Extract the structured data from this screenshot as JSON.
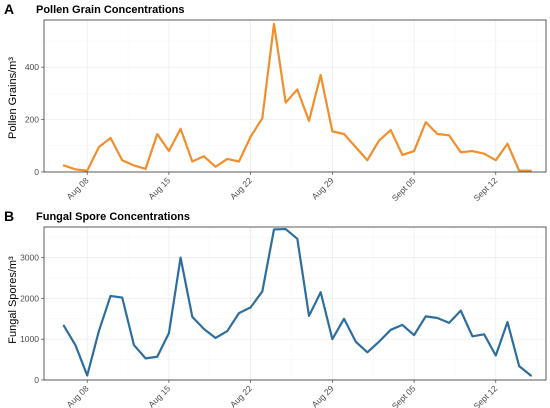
{
  "chart_data": [
    {
      "type": "line",
      "panel_label": "A",
      "title": "Pollen Grain Concentrations",
      "xlabel": "",
      "ylabel": "Pollen Grains/m³",
      "ylim": [
        0,
        580
      ],
      "yticks": [
        0,
        200,
        400
      ],
      "xtick_labels": [
        "Aug 08",
        "Aug 15",
        "Aug 22",
        "Aug 29",
        "Sept 05",
        "Sept 12"
      ],
      "xtick_days": [
        8,
        15,
        22,
        29,
        36,
        43
      ],
      "color": "#F28E2B",
      "grid": true,
      "legend": "none",
      "x_days": [
        6,
        7,
        8,
        9,
        10,
        11,
        12,
        13,
        14,
        15,
        16,
        17,
        18,
        19,
        20,
        21,
        22,
        23,
        24,
        25,
        26,
        27,
        28,
        29,
        30,
        31,
        32,
        33,
        34,
        35,
        36,
        37,
        38,
        39,
        40,
        41,
        42,
        43,
        44,
        45,
        46
      ],
      "values": [
        25,
        10,
        5,
        95,
        130,
        45,
        25,
        12,
        145,
        80,
        165,
        40,
        60,
        20,
        50,
        40,
        135,
        205,
        565,
        265,
        315,
        195,
        370,
        155,
        145,
        95,
        45,
        120,
        160,
        65,
        80,
        190,
        145,
        140,
        75,
        80,
        70,
        45,
        108,
        5,
        5
      ]
    },
    {
      "type": "line",
      "panel_label": "B",
      "title": "Fungal Spore Concentrations",
      "xlabel": "",
      "ylabel": "Fungal Spores/m³",
      "ylim": [
        0,
        3750
      ],
      "yticks": [
        0,
        1000,
        2000,
        3000
      ],
      "xtick_labels": [
        "Aug 08",
        "Aug 15",
        "Aug 22",
        "Aug 29",
        "Sept 05",
        "Sept 12"
      ],
      "xtick_days": [
        8,
        15,
        22,
        29,
        36,
        43
      ],
      "color": "#2E6E9E",
      "grid": true,
      "legend": "none",
      "x_days": [
        6,
        7,
        8,
        9,
        10,
        11,
        12,
        13,
        14,
        15,
        16,
        17,
        18,
        19,
        20,
        21,
        22,
        23,
        24,
        25,
        26,
        27,
        28,
        29,
        30,
        31,
        32,
        33,
        34,
        35,
        36,
        37,
        38,
        39,
        40,
        41,
        42,
        43,
        44,
        45,
        46
      ],
      "values": [
        1330,
        850,
        110,
        1200,
        2060,
        2020,
        860,
        530,
        570,
        1150,
        3000,
        1550,
        1250,
        1030,
        1200,
        1640,
        1780,
        2170,
        3690,
        3700,
        3460,
        1570,
        2150,
        1000,
        1500,
        940,
        680,
        940,
        1230,
        1350,
        1100,
        1560,
        1520,
        1400,
        1700,
        1070,
        1120,
        600,
        1420,
        340,
        110
      ]
    }
  ]
}
